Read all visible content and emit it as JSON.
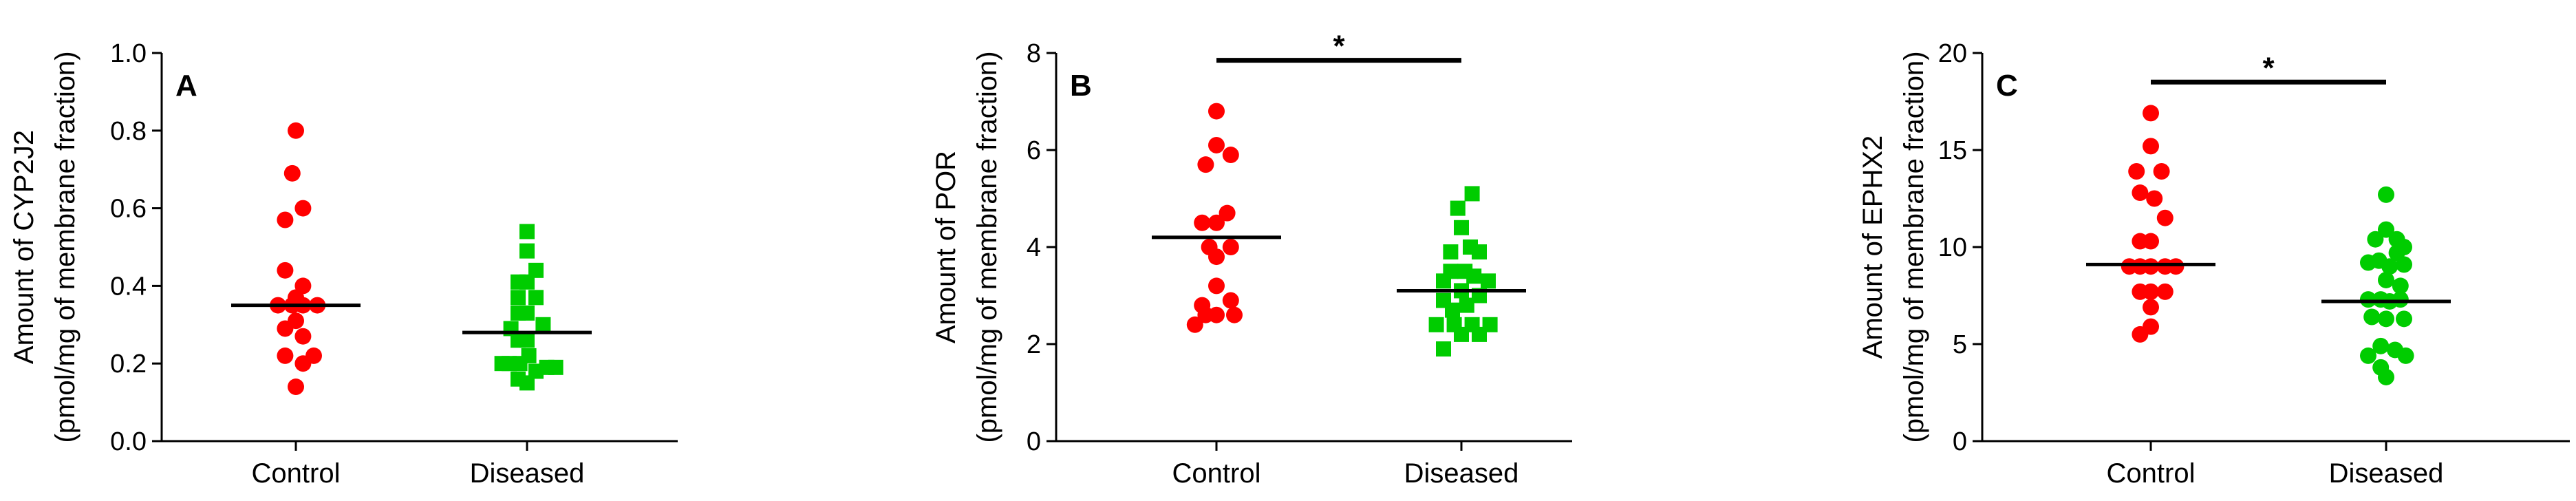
{
  "chart_data": [
    {
      "type": "scatter",
      "panel": "A",
      "ylabel_line1": "Amount of CYP2J2",
      "ylabel_line2": "(pmol/mg of membrane fraction)",
      "xlabel": "",
      "categories": [
        "Control",
        "Diseased"
      ],
      "ylim": [
        0,
        1.0
      ],
      "yticks": [
        "0.0",
        "0.2",
        "0.4",
        "0.6",
        "0.8",
        "1.0"
      ],
      "ytick_values": [
        0,
        0.2,
        0.4,
        0.6,
        0.8,
        1.0
      ],
      "series": [
        {
          "name": "Control",
          "marker": "circle",
          "color": "#ff0000",
          "median": 0.35,
          "points": [
            {
              "x": 0.0,
              "y": 0.8
            },
            {
              "x": -0.1,
              "y": 0.69
            },
            {
              "x": 0.2,
              "y": 0.6
            },
            {
              "x": -0.3,
              "y": 0.57
            },
            {
              "x": -0.3,
              "y": 0.44
            },
            {
              "x": 0.2,
              "y": 0.4
            },
            {
              "x": 0.0,
              "y": 0.37
            },
            {
              "x": -0.5,
              "y": 0.35
            },
            {
              "x": 0.6,
              "y": 0.35
            },
            {
              "x": -0.1,
              "y": 0.35
            },
            {
              "x": 0.2,
              "y": 0.35
            },
            {
              "x": 0.0,
              "y": 0.31
            },
            {
              "x": -0.3,
              "y": 0.29
            },
            {
              "x": 0.2,
              "y": 0.27
            },
            {
              "x": -0.3,
              "y": 0.22
            },
            {
              "x": 0.5,
              "y": 0.22
            },
            {
              "x": 0.2,
              "y": 0.2
            },
            {
              "x": 0.0,
              "y": 0.14
            }
          ]
        },
        {
          "name": "Diseased",
          "marker": "square",
          "color": "#00cc00",
          "median": 0.28,
          "points": [
            {
              "x": 0.0,
              "y": 0.54
            },
            {
              "x": 0.0,
              "y": 0.49
            },
            {
              "x": 0.25,
              "y": 0.44
            },
            {
              "x": -0.25,
              "y": 0.41
            },
            {
              "x": 0.0,
              "y": 0.41
            },
            {
              "x": -0.25,
              "y": 0.37
            },
            {
              "x": 0.25,
              "y": 0.37
            },
            {
              "x": -0.25,
              "y": 0.33
            },
            {
              "x": 0.0,
              "y": 0.33
            },
            {
              "x": -0.45,
              "y": 0.29
            },
            {
              "x": 0.45,
              "y": 0.3
            },
            {
              "x": -0.25,
              "y": 0.26
            },
            {
              "x": 0.0,
              "y": 0.26
            },
            {
              "x": -0.7,
              "y": 0.2
            },
            {
              "x": -0.5,
              "y": 0.2
            },
            {
              "x": -0.2,
              "y": 0.2
            },
            {
              "x": 0.05,
              "y": 0.22
            },
            {
              "x": 0.25,
              "y": 0.18
            },
            {
              "x": 0.55,
              "y": 0.19
            },
            {
              "x": 0.8,
              "y": 0.19
            },
            {
              "x": -0.25,
              "y": 0.16
            },
            {
              "x": 0.0,
              "y": 0.15
            }
          ]
        }
      ],
      "significance": null
    },
    {
      "type": "scatter",
      "panel": "B",
      "ylabel_line1": "Amount of POR",
      "ylabel_line2": "(pmol/mg of membrane fraction)",
      "xlabel": "",
      "categories": [
        "Control",
        "Diseased"
      ],
      "ylim": [
        0,
        8
      ],
      "yticks": [
        "0",
        "2",
        "4",
        "6",
        "8"
      ],
      "ytick_values": [
        0,
        2,
        4,
        6,
        8
      ],
      "series": [
        {
          "name": "Control",
          "marker": "circle",
          "color": "#ff0000",
          "median": 4.2,
          "points": [
            {
              "x": 0.0,
              "y": 6.8
            },
            {
              "x": 0.0,
              "y": 6.1
            },
            {
              "x": 0.4,
              "y": 5.9
            },
            {
              "x": -0.3,
              "y": 5.7
            },
            {
              "x": 0.3,
              "y": 4.7
            },
            {
              "x": -0.4,
              "y": 4.5
            },
            {
              "x": 0.0,
              "y": 4.5
            },
            {
              "x": -0.2,
              "y": 4.0
            },
            {
              "x": 0.4,
              "y": 4.0
            },
            {
              "x": 0.0,
              "y": 3.8
            },
            {
              "x": 0.0,
              "y": 3.2
            },
            {
              "x": -0.4,
              "y": 2.8
            },
            {
              "x": 0.4,
              "y": 2.9
            },
            {
              "x": -0.3,
              "y": 2.6
            },
            {
              "x": 0.5,
              "y": 2.6
            },
            {
              "x": -0.6,
              "y": 2.4
            },
            {
              "x": 0.0,
              "y": 2.6
            }
          ]
        },
        {
          "name": "Diseased",
          "marker": "square",
          "color": "#00cc00",
          "median": 3.1,
          "points": [
            {
              "x": 0.3,
              "y": 5.1
            },
            {
              "x": -0.1,
              "y": 4.8
            },
            {
              "x": 0.0,
              "y": 4.4
            },
            {
              "x": 0.25,
              "y": 4.0
            },
            {
              "x": -0.3,
              "y": 3.9
            },
            {
              "x": 0.5,
              "y": 3.9
            },
            {
              "x": -0.3,
              "y": 3.5
            },
            {
              "x": 0.1,
              "y": 3.5
            },
            {
              "x": 0.35,
              "y": 3.4
            },
            {
              "x": -0.5,
              "y": 3.3
            },
            {
              "x": 0.75,
              "y": 3.3
            },
            {
              "x": 0.0,
              "y": 3.1
            },
            {
              "x": 0.5,
              "y": 3.0
            },
            {
              "x": -0.5,
              "y": 2.9
            },
            {
              "x": -0.25,
              "y": 2.7
            },
            {
              "x": 0.15,
              "y": 2.8
            },
            {
              "x": -0.7,
              "y": 2.4
            },
            {
              "x": 0.8,
              "y": 2.4
            },
            {
              "x": -0.2,
              "y": 2.4
            },
            {
              "x": 0.3,
              "y": 2.4
            },
            {
              "x": -0.5,
              "y": 1.9
            },
            {
              "x": 0.0,
              "y": 2.2
            },
            {
              "x": 0.5,
              "y": 2.2
            }
          ]
        }
      ],
      "significance": {
        "label": "*",
        "y": 7.85,
        "from": "Control",
        "to": "Diseased"
      }
    },
    {
      "type": "scatter",
      "panel": "C",
      "ylabel_line1": "Amount of EPHX2",
      "ylabel_line2": "(pmol/mg of membrane fraction)",
      "xlabel": "",
      "categories": [
        "Control",
        "Diseased"
      ],
      "ylim": [
        0,
        20
      ],
      "yticks": [
        "0",
        "5",
        "10",
        "15",
        "20"
      ],
      "ytick_values": [
        0,
        5,
        10,
        15,
        20
      ],
      "series": [
        {
          "name": "Control",
          "marker": "circle",
          "color": "#ff0000",
          "median": 9.1,
          "points": [
            {
              "x": 0.0,
              "y": 16.9
            },
            {
              "x": 0.0,
              "y": 15.2
            },
            {
              "x": -0.4,
              "y": 13.9
            },
            {
              "x": 0.3,
              "y": 13.9
            },
            {
              "x": -0.3,
              "y": 12.8
            },
            {
              "x": 0.1,
              "y": 12.5
            },
            {
              "x": 0.4,
              "y": 11.5
            },
            {
              "x": -0.3,
              "y": 10.3
            },
            {
              "x": 0.0,
              "y": 10.3
            },
            {
              "x": -0.6,
              "y": 9.0
            },
            {
              "x": -0.3,
              "y": 9.0
            },
            {
              "x": 0.4,
              "y": 9.0
            },
            {
              "x": 0.7,
              "y": 9.0
            },
            {
              "x": 0.0,
              "y": 9.0
            },
            {
              "x": -0.3,
              "y": 7.7
            },
            {
              "x": 0.0,
              "y": 7.7
            },
            {
              "x": 0.4,
              "y": 7.7
            },
            {
              "x": 0.0,
              "y": 6.9
            },
            {
              "x": -0.3,
              "y": 5.5
            },
            {
              "x": 0.0,
              "y": 5.9
            }
          ]
        },
        {
          "name": "Diseased",
          "marker": "circle",
          "color": "#00cc00",
          "median": 7.2,
          "points": [
            {
              "x": 0.0,
              "y": 12.7
            },
            {
              "x": 0.0,
              "y": 10.9
            },
            {
              "x": -0.3,
              "y": 10.4
            },
            {
              "x": 0.3,
              "y": 10.4
            },
            {
              "x": 0.3,
              "y": 9.7
            },
            {
              "x": 0.5,
              "y": 10.0
            },
            {
              "x": -0.5,
              "y": 9.2
            },
            {
              "x": -0.2,
              "y": 9.3
            },
            {
              "x": 0.1,
              "y": 9.0
            },
            {
              "x": 0.5,
              "y": 9.1
            },
            {
              "x": 0.0,
              "y": 8.3
            },
            {
              "x": 0.4,
              "y": 8.0
            },
            {
              "x": -0.5,
              "y": 7.3
            },
            {
              "x": -0.15,
              "y": 7.3
            },
            {
              "x": 0.1,
              "y": 7.2
            },
            {
              "x": 0.4,
              "y": 7.3
            },
            {
              "x": -0.4,
              "y": 6.4
            },
            {
              "x": 0.0,
              "y": 6.3
            },
            {
              "x": 0.5,
              "y": 6.3
            },
            {
              "x": -0.5,
              "y": 4.4
            },
            {
              "x": -0.15,
              "y": 4.9
            },
            {
              "x": 0.25,
              "y": 4.7
            },
            {
              "x": 0.55,
              "y": 4.4
            },
            {
              "x": -0.15,
              "y": 3.8
            },
            {
              "x": 0.0,
              "y": 3.3
            }
          ]
        }
      ],
      "significance": {
        "label": "*",
        "y": 18.5,
        "from": "Control",
        "to": "Diseased"
      }
    }
  ]
}
